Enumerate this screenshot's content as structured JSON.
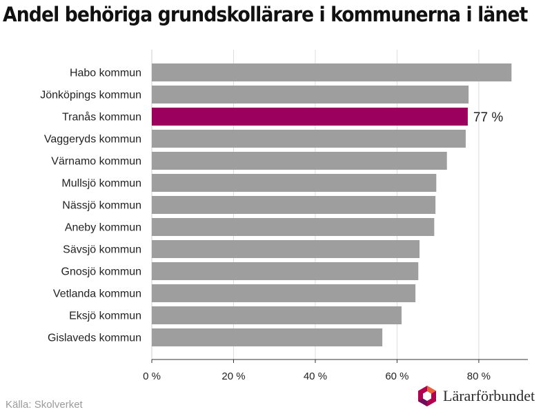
{
  "chart_data": {
    "type": "bar",
    "orientation": "horizontal",
    "title": "Andel behöriga grundskollärare i kommunerna i länet",
    "categories": [
      "Habo kommun",
      "Jönköpings kommun",
      "Tranås kommun",
      "Vaggeryds kommun",
      "Värnamo kommun",
      "Mullsjö kommun",
      "Nässjö kommun",
      "Aneby kommun",
      "Sävsjö kommun",
      "Gnosjö kommun",
      "Vetlanda kommun",
      "Eksjö kommun",
      "Gislaveds kommun"
    ],
    "values": [
      88,
      77.5,
      77.3,
      76.8,
      72.2,
      69.6,
      69.4,
      69.1,
      65.5,
      65.2,
      64.5,
      61.1,
      56.4
    ],
    "highlight_index": 2,
    "highlight_label": "77 %",
    "xticks": [
      0,
      20,
      40,
      60,
      80
    ],
    "xtick_labels": [
      "0 %",
      "20 %",
      "40 %",
      "60 %",
      "80 %"
    ],
    "xlim": [
      0,
      92
    ],
    "grid": true,
    "colors": {
      "bar": "#9e9e9e",
      "highlight": "#9b005f",
      "grid": "#dcdcdc",
      "axis": "#333333"
    }
  },
  "footer": {
    "source": "Källa: Skolverket",
    "brand": "Lärarförbundet"
  }
}
